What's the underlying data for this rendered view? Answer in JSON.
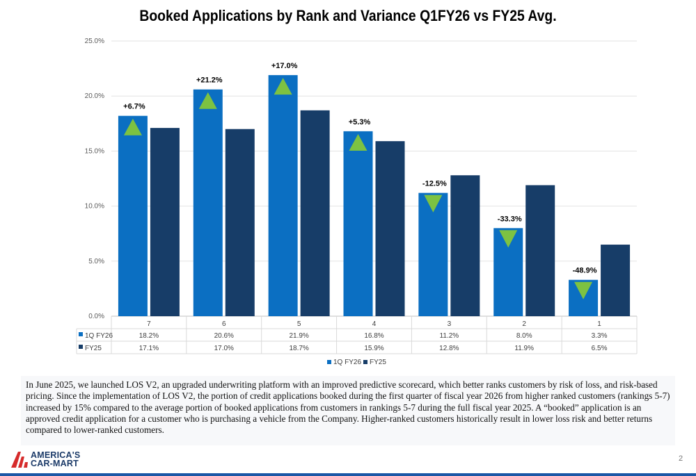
{
  "chart_data": {
    "type": "bar",
    "title": "Booked Applications by Rank and Variance Q1FY26 vs FY25 Avg.",
    "categories": [
      "7",
      "6",
      "5",
      "4",
      "3",
      "2",
      "1"
    ],
    "series": [
      {
        "name": "1Q FY26",
        "color": "#0b6fc2",
        "values": [
          18.2,
          20.6,
          21.9,
          16.8,
          11.2,
          8.0,
          3.3
        ],
        "labels": [
          "18.2%",
          "20.6%",
          "21.9%",
          "16.8%",
          "11.2%",
          "8.0%",
          "3.3%"
        ]
      },
      {
        "name": "FY25",
        "color": "#173d68",
        "values": [
          17.1,
          17.0,
          18.7,
          15.9,
          12.8,
          11.9,
          6.5
        ],
        "labels": [
          "17.1%",
          "17.0%",
          "18.7%",
          "15.9%",
          "12.8%",
          "11.9%",
          "6.5%"
        ]
      }
    ],
    "variance": [
      {
        "label": "+6.7%",
        "direction": "up"
      },
      {
        "label": "+21.2%",
        "direction": "up"
      },
      {
        "label": "+17.0%",
        "direction": "up"
      },
      {
        "label": "+5.3%",
        "direction": "up"
      },
      {
        "label": "-12.5%",
        "direction": "down"
      },
      {
        "label": "-33.3%",
        "direction": "down"
      },
      {
        "label": "-48.9%",
        "direction": "down"
      }
    ],
    "yticks": [
      0,
      5,
      10,
      15,
      20,
      25
    ],
    "ytick_labels": [
      "0.0%",
      "5.0%",
      "10.0%",
      "15.0%",
      "20.0%",
      "25.0%"
    ],
    "ylim": [
      0,
      25
    ],
    "legend": [
      "1Q FY26",
      "FY25"
    ],
    "grid": true,
    "arrow_color": "#7dc242"
  },
  "text": {
    "paragraph": "In June 2025, we launched LOS V2, an upgraded underwriting platform with an improved predictive scorecard, which better ranks customers by risk of loss, and risk-based pricing.  Since the implementation of LOS V2, the portion of credit applications booked during the first quarter of fiscal year 2026 from higher ranked customers (rankings 5-7) increased by 15% compared to the average portion of booked applications from customers in rankings 5-7 during the full fiscal year 2025.  A “booked” application is an approved credit application for a customer who is purchasing a vehicle from the Company. Higher-ranked customers historically result in lower loss risk and better returns compared to lower-ranked customers."
  },
  "footer": {
    "logo_line1": "AMERICA'S",
    "logo_line2": "CAR-MART",
    "page_number": "2"
  }
}
